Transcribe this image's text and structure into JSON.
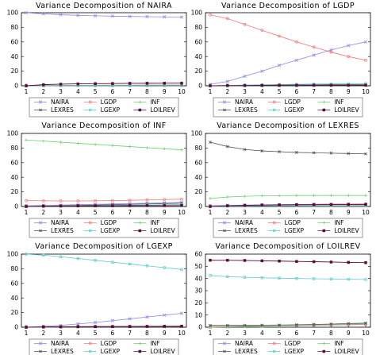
{
  "figure": {
    "panel_colors": {
      "NAIRA": "#8a8ae6",
      "LGDP": "#f07a7a",
      "INF": "#6fcf6f",
      "LEXRES": "#555555",
      "LGEXP": "#5cc8c8",
      "LOILREV": "#5a0a3a"
    }
  },
  "chart_data": [
    {
      "type": "line",
      "title": "Variance Decomposition of NAIRA",
      "xlabel": "",
      "ylabel": "",
      "x": [
        1,
        2,
        3,
        4,
        5,
        6,
        7,
        8,
        9,
        10
      ],
      "ylim": [
        0,
        100
      ],
      "yticks": [
        0,
        20,
        40,
        60,
        80,
        100
      ],
      "legend": "bottom",
      "series": [
        {
          "name": "NAIRA",
          "values": [
            100,
            98.5,
            97.2,
            96.4,
            95.8,
            95.3,
            94.9,
            94.6,
            94.3,
            94.0
          ]
        },
        {
          "name": "LGDP",
          "values": [
            0,
            0.3,
            0.5,
            0.6,
            0.7,
            0.8,
            0.9,
            0.9,
            1.0,
            1.0
          ]
        },
        {
          "name": "INF",
          "values": [
            0,
            0.2,
            0.3,
            0.4,
            0.5,
            0.5,
            0.6,
            0.6,
            0.6,
            0.7
          ]
        },
        {
          "name": "LEXRES",
          "values": [
            0,
            0.2,
            0.3,
            0.3,
            0.4,
            0.4,
            0.4,
            0.5,
            0.5,
            0.5
          ]
        },
        {
          "name": "LGEXP",
          "values": [
            0,
            0.1,
            0.1,
            0.2,
            0.2,
            0.2,
            0.2,
            0.3,
            0.3,
            0.3
          ]
        },
        {
          "name": "LOILREV",
          "values": [
            0,
            1.5,
            2.2,
            2.6,
            2.9,
            3.1,
            3.3,
            3.4,
            3.5,
            3.6
          ]
        }
      ]
    },
    {
      "type": "line",
      "title": "Variance Decomposition of LGDP",
      "xlabel": "",
      "ylabel": "",
      "x": [
        1,
        2,
        3,
        4,
        5,
        6,
        7,
        8,
        9,
        10
      ],
      "ylim": [
        0,
        100
      ],
      "yticks": [
        0,
        20,
        40,
        60,
        80,
        100
      ],
      "legend": "bottom",
      "series": [
        {
          "name": "NAIRA",
          "values": [
            2,
            6,
            13,
            20,
            28,
            35,
            42,
            49,
            55,
            60
          ]
        },
        {
          "name": "LGDP",
          "values": [
            97,
            92,
            84,
            76,
            68,
            60,
            53,
            46,
            40,
            35
          ]
        },
        {
          "name": "INF",
          "values": [
            0,
            0.3,
            0.5,
            0.6,
            0.7,
            0.8,
            0.9,
            0.9,
            1.0,
            1.0
          ]
        },
        {
          "name": "LEXRES",
          "values": [
            0,
            0.4,
            0.8,
            1.1,
            1.3,
            1.5,
            1.6,
            1.7,
            1.8,
            1.9
          ]
        },
        {
          "name": "LGEXP",
          "values": [
            0,
            0.5,
            1.0,
            1.4,
            1.8,
            2.1,
            2.4,
            2.6,
            2.8,
            3.0
          ]
        },
        {
          "name": "LOILREV",
          "values": [
            0,
            0.2,
            0.3,
            0.4,
            0.5,
            0.5,
            0.6,
            0.6,
            0.6,
            0.7
          ]
        }
      ]
    },
    {
      "type": "line",
      "title": "Variance Decomposition of INF",
      "xlabel": "",
      "ylabel": "",
      "x": [
        1,
        2,
        3,
        4,
        5,
        6,
        7,
        8,
        9,
        10
      ],
      "ylim": [
        0,
        100
      ],
      "yticks": [
        0,
        20,
        40,
        60,
        80,
        100
      ],
      "legend": "bottom",
      "series": [
        {
          "name": "NAIRA",
          "values": [
            1,
            1.5,
            2,
            2.5,
            3,
            3.5,
            4,
            4.5,
            5,
            5.5
          ]
        },
        {
          "name": "LGDP",
          "values": [
            8,
            7.8,
            7.6,
            7.6,
            7.8,
            8.1,
            8.5,
            9.0,
            9.5,
            10.0
          ]
        },
        {
          "name": "INF",
          "values": [
            91,
            89.5,
            88,
            86.5,
            85,
            83.5,
            82,
            80.5,
            79,
            77.5
          ]
        },
        {
          "name": "LEXRES",
          "values": [
            0,
            0.5,
            1.0,
            1.5,
            2.0,
            2.5,
            3.0,
            3.5,
            4.0,
            4.5
          ]
        },
        {
          "name": "LGEXP",
          "values": [
            0,
            0.3,
            0.6,
            0.9,
            1.2,
            1.5,
            1.8,
            2.1,
            2.4,
            2.7
          ]
        },
        {
          "name": "LOILREV",
          "values": [
            0,
            0.4,
            0.6,
            0.8,
            0.9,
            1.0,
            1.1,
            1.2,
            1.2,
            1.3
          ]
        }
      ]
    },
    {
      "type": "line",
      "title": "Variance Decomposition of LEXRES",
      "xlabel": "",
      "ylabel": "",
      "x": [
        1,
        2,
        3,
        4,
        5,
        6,
        7,
        8,
        9,
        10
      ],
      "ylim": [
        0,
        100
      ],
      "yticks": [
        0,
        20,
        40,
        60,
        80,
        100
      ],
      "legend": "bottom",
      "series": [
        {
          "name": "NAIRA",
          "values": [
            1,
            1.5,
            2,
            2.3,
            2.6,
            2.8,
            3.0,
            3.2,
            3.3,
            3.4
          ]
        },
        {
          "name": "LGDP",
          "values": [
            0,
            0.8,
            1.5,
            2.0,
            2.4,
            2.7,
            3.0,
            3.2,
            3.4,
            3.6
          ]
        },
        {
          "name": "INF",
          "values": [
            11,
            13,
            14,
            14.5,
            14.8,
            15,
            15,
            15,
            15,
            15
          ]
        },
        {
          "name": "LEXRES",
          "values": [
            88,
            82,
            78,
            76,
            75,
            74,
            73.5,
            73,
            72.5,
            72
          ]
        },
        {
          "name": "LGEXP",
          "values": [
            0,
            0.5,
            0.8,
            1.0,
            1.2,
            1.3,
            1.4,
            1.5,
            1.6,
            1.6
          ]
        },
        {
          "name": "LOILREV",
          "values": [
            0,
            1.0,
            1.6,
            2.0,
            2.2,
            2.4,
            2.5,
            2.6,
            2.7,
            2.8
          ]
        }
      ]
    },
    {
      "type": "line",
      "title": "Variance Decomposition of LGEXP",
      "xlabel": "",
      "ylabel": "",
      "x": [
        1,
        2,
        3,
        4,
        5,
        6,
        7,
        8,
        9,
        10
      ],
      "ylim": [
        0,
        100
      ],
      "yticks": [
        0,
        20,
        40,
        60,
        80,
        100
      ],
      "legend": "bottom",
      "series": [
        {
          "name": "NAIRA",
          "values": [
            0,
            1,
            2.5,
            4.5,
            6.5,
            9,
            11.5,
            14,
            16.5,
            19
          ]
        },
        {
          "name": "LGDP",
          "values": [
            0,
            0.3,
            0.5,
            0.7,
            0.9,
            1.0,
            1.1,
            1.2,
            1.3,
            1.4
          ]
        },
        {
          "name": "INF",
          "values": [
            0,
            0.2,
            0.4,
            0.5,
            0.6,
            0.7,
            0.8,
            0.9,
            1.0,
            1.0
          ]
        },
        {
          "name": "LEXRES",
          "values": [
            0,
            0.2,
            0.3,
            0.4,
            0.5,
            0.6,
            0.6,
            0.7,
            0.7,
            0.8
          ]
        },
        {
          "name": "LGEXP",
          "values": [
            100,
            98.5,
            96.5,
            94,
            91.5,
            89,
            86.5,
            84,
            81.5,
            79
          ]
        },
        {
          "name": "LOILREV",
          "values": [
            0,
            0.3,
            0.5,
            0.7,
            0.8,
            0.9,
            1.0,
            1.1,
            1.2,
            1.3
          ]
        }
      ]
    },
    {
      "type": "line",
      "title": "Variance Decomposition of LOILREV",
      "xlabel": "",
      "ylabel": "",
      "x": [
        1,
        2,
        3,
        4,
        5,
        6,
        7,
        8,
        9,
        10
      ],
      "ylim": [
        0,
        60
      ],
      "yticks": [
        0,
        10,
        20,
        30,
        40,
        50,
        60
      ],
      "legend": "bottom",
      "series": [
        {
          "name": "NAIRA",
          "values": [
            0,
            0.3,
            0.6,
            0.9,
            1.2,
            1.5,
            1.8,
            2.1,
            2.4,
            2.7
          ]
        },
        {
          "name": "LGDP",
          "values": [
            0.5,
            0.6,
            0.8,
            1.0,
            1.2,
            1.4,
            1.6,
            1.8,
            2.0,
            2.2
          ]
        },
        {
          "name": "INF",
          "values": [
            0,
            0.4,
            0.7,
            1.0,
            1.3,
            1.6,
            1.9,
            2.2,
            2.5,
            2.8
          ]
        },
        {
          "name": "LEXRES",
          "values": [
            1.5,
            1.5,
            1.6,
            1.7,
            1.8,
            2.0,
            2.3,
            2.6,
            3.0,
            3.4
          ]
        },
        {
          "name": "LGEXP",
          "values": [
            42.5,
            41.5,
            41,
            40.6,
            40.3,
            40,
            39.8,
            39.6,
            39.4,
            39.2
          ]
        },
        {
          "name": "LOILREV",
          "values": [
            55,
            55,
            54.8,
            54.5,
            54.3,
            54,
            53.8,
            53.5,
            53.2,
            53
          ]
        }
      ]
    }
  ]
}
